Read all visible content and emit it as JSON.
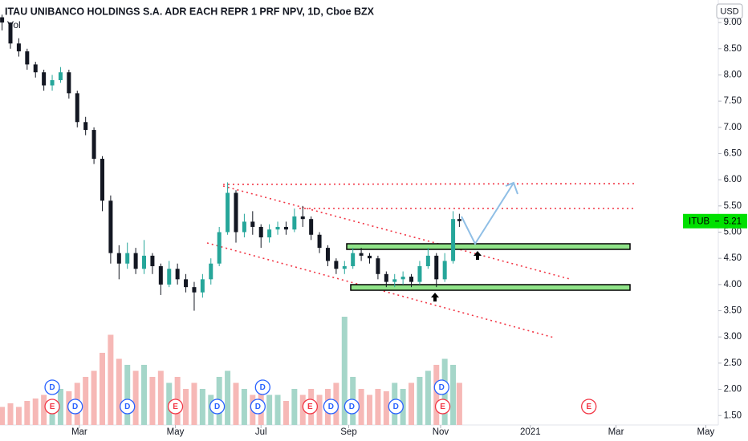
{
  "chart_data": {
    "type": "candlestick",
    "title": "ITAU UNIBANCO HOLDINGS S.A. ADR EACH REPR 1 PRF NPV, 1D, Cboe BZX",
    "volume_label": "Vol",
    "currency": "USD",
    "symbol": "ITUB",
    "last_price": 5.21,
    "up_color": "#26a69a",
    "down_color": "#131722",
    "volume_up_color": "#a5d6c9",
    "volume_down_color": "#f6b8b6",
    "x": [
      0,
      4,
      8,
      12,
      16,
      20,
      24,
      28,
      32,
      36,
      40,
      44,
      48,
      52,
      56,
      60,
      64,
      68,
      72,
      76,
      80,
      84,
      88,
      92,
      96,
      100,
      104,
      108,
      112,
      116,
      120,
      124,
      128,
      132,
      136,
      140,
      144,
      148,
      152,
      156,
      160,
      164,
      168,
      172,
      176,
      180,
      184,
      188,
      192,
      196,
      200,
      204,
      208,
      212,
      216,
      219
    ],
    "open": [
      9.1,
      9.0,
      8.6,
      8.45,
      8.2,
      8.05,
      7.8,
      7.9,
      8.05,
      7.65,
      7.1,
      6.95,
      6.4,
      5.6,
      4.6,
      4.4,
      4.6,
      4.3,
      4.55,
      4.35,
      4.0,
      4.3,
      4.1,
      3.95,
      3.85,
      4.1,
      4.4,
      5.0,
      5.75,
      5.0,
      5.2,
      5.1,
      4.9,
      5.05,
      5.1,
      5.05,
      5.3,
      5.25,
      4.95,
      4.7,
      4.45,
      4.3,
      4.35,
      4.6,
      4.55,
      4.5,
      4.2,
      4.05,
      4.1,
      4.15,
      4.05,
      4.35,
      4.55,
      4.1,
      4.45,
      5.25
    ],
    "high": [
      9.15,
      9.0,
      8.7,
      8.5,
      8.25,
      8.1,
      8.0,
      8.15,
      8.1,
      7.7,
      7.2,
      7.0,
      6.45,
      5.7,
      4.75,
      4.8,
      4.7,
      4.85,
      4.6,
      4.4,
      4.45,
      4.4,
      4.2,
      4.05,
      4.2,
      4.5,
      5.1,
      5.95,
      5.8,
      5.35,
      5.4,
      5.15,
      5.15,
      5.2,
      5.2,
      5.45,
      5.5,
      5.3,
      5.0,
      4.75,
      4.5,
      4.45,
      4.7,
      4.7,
      4.6,
      4.55,
      4.25,
      4.2,
      4.25,
      4.2,
      4.45,
      4.7,
      4.6,
      4.6,
      5.4,
      5.35
    ],
    "low": [
      8.85,
      8.5,
      8.35,
      8.1,
      7.95,
      7.7,
      7.7,
      7.85,
      7.55,
      7.0,
      6.85,
      6.3,
      5.4,
      4.4,
      4.1,
      4.3,
      4.2,
      4.2,
      4.2,
      3.8,
      3.95,
      4.0,
      3.85,
      3.5,
      3.75,
      4.0,
      4.35,
      4.95,
      4.8,
      4.9,
      4.95,
      4.7,
      4.8,
      4.95,
      4.95,
      5.0,
      5.1,
      4.85,
      4.6,
      4.35,
      4.2,
      4.2,
      4.3,
      4.45,
      4.4,
      4.1,
      3.95,
      3.95,
      4.0,
      3.95,
      4.0,
      4.3,
      3.95,
      4.05,
      4.4,
      5.1
    ],
    "close": [
      9.0,
      8.6,
      8.45,
      8.2,
      8.05,
      7.8,
      7.9,
      8.05,
      7.65,
      7.1,
      6.95,
      6.4,
      5.6,
      4.6,
      4.4,
      4.6,
      4.3,
      4.55,
      4.35,
      4.0,
      4.3,
      4.1,
      3.95,
      3.85,
      4.1,
      4.4,
      5.0,
      5.75,
      5.0,
      5.2,
      5.1,
      4.9,
      5.05,
      5.1,
      5.05,
      5.3,
      5.25,
      4.95,
      4.7,
      4.45,
      4.3,
      4.35,
      4.6,
      4.55,
      4.5,
      4.2,
      4.05,
      4.1,
      4.15,
      4.05,
      4.35,
      4.55,
      4.1,
      4.45,
      5.25,
      5.21
    ],
    "volume": [
      15,
      18,
      15,
      20,
      22,
      25,
      20,
      30,
      28,
      35,
      40,
      45,
      60,
      75,
      55,
      50,
      45,
      50,
      40,
      45,
      35,
      40,
      30,
      35,
      30,
      25,
      40,
      45,
      35,
      30,
      25,
      30,
      25,
      25,
      20,
      30,
      25,
      30,
      25,
      30,
      35,
      90,
      40,
      30,
      25,
      30,
      28,
      35,
      30,
      35,
      40,
      45,
      50,
      55,
      50,
      35
    ],
    "volume_lim": [
      0,
      100
    ],
    "xlim": [
      -1,
      343
    ],
    "xticks": [
      {
        "value": 37,
        "label": "Mar"
      },
      {
        "value": 83,
        "label": "May"
      },
      {
        "value": 124,
        "label": "Jul"
      },
      {
        "value": 166,
        "label": "Sep"
      },
      {
        "value": 210,
        "label": "Nov"
      },
      {
        "value": 253,
        "label": "2021"
      },
      {
        "value": 294,
        "label": "Mar"
      },
      {
        "value": 337,
        "label": "May"
      }
    ],
    "ylim": [
      1.32,
      9.43
    ],
    "yticks": [
      {
        "value": 1.5,
        "label": "1.50"
      },
      {
        "value": 2,
        "label": "2.00"
      },
      {
        "value": 2.5,
        "label": "2.50"
      },
      {
        "value": 3,
        "label": "3.00"
      },
      {
        "value": 3.5,
        "label": "3.50"
      },
      {
        "value": 4,
        "label": "4.00"
      },
      {
        "value": 4.5,
        "label": "4.50"
      },
      {
        "value": 5,
        "label": "5.00"
      },
      {
        "value": 5.5,
        "label": "5.50"
      },
      {
        "value": 6,
        "label": "6.00"
      },
      {
        "value": 6.5,
        "label": "6.50"
      },
      {
        "value": 7,
        "label": "7.00"
      },
      {
        "value": 7.5,
        "label": "7.50"
      },
      {
        "value": 8,
        "label": "8.00"
      },
      {
        "value": 8.5,
        "label": "8.50"
      },
      {
        "value": 9,
        "label": "9.00"
      }
    ],
    "events": [
      {
        "label": "E",
        "x": 24
      },
      {
        "label": "D",
        "x": 24
      },
      {
        "label": "D",
        "x": 35
      },
      {
        "label": "D",
        "x": 60
      },
      {
        "label": "E",
        "x": 83
      },
      {
        "label": "D",
        "x": 103
      },
      {
        "label": "D",
        "x": 122.5
      },
      {
        "label": "D",
        "x": 124.8
      },
      {
        "label": "E",
        "x": 147.5
      },
      {
        "label": "D",
        "x": 157.5
      },
      {
        "label": "D",
        "x": 167.5
      },
      {
        "label": "D",
        "x": 188.6
      },
      {
        "label": "E",
        "x": 211
      },
      {
        "label": "D",
        "x": 210.5
      },
      {
        "label": "E",
        "x": 281
      }
    ]
  }
}
